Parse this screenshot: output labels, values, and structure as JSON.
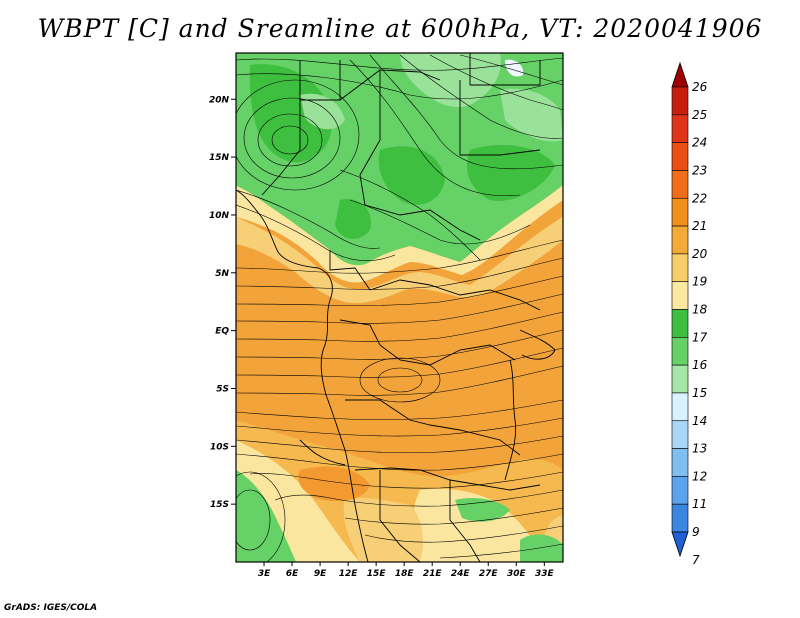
{
  "title": "WBPT [C] and Sreamline at 600hPa, VT: 2020041906",
  "footer": "GrADS: IGES/COLA",
  "map": {
    "lon_range": [
      0,
      35
    ],
    "lat_range": [
      -20,
      24
    ],
    "lon_ticks": [
      "3E",
      "6E",
      "9E",
      "12E",
      "15E",
      "18E",
      "21E",
      "24E",
      "27E",
      "30E",
      "33E"
    ],
    "lat_ticks": [
      "20N",
      "15N",
      "10N",
      "5N",
      "EQ",
      "5S",
      "10S",
      "15S"
    ],
    "colors": {
      "green_dark": "#3fbf3f",
      "green_mid": "#66d166",
      "green_light": "#9ae29a",
      "yellow_light": "#fbe6a0",
      "tan": "#f7cf77",
      "orange_light": "#f5b94f",
      "orange": "#f2a33a",
      "white_patch": "#f0f7ff"
    }
  },
  "colorbar": {
    "labels": [
      "26",
      "25",
      "24",
      "23",
      "22",
      "21",
      "20",
      "19",
      "18",
      "17",
      "16",
      "15",
      "14",
      "13",
      "12",
      "11",
      "9",
      "7"
    ],
    "colors": [
      "#a00000",
      "#c81e0e",
      "#e0341a",
      "#eb4f14",
      "#f06e1a",
      "#f2901e",
      "#f2ab36",
      "#f7cf6a",
      "#fbe8a0",
      "#3fbf3f",
      "#66d166",
      "#a6e6a6",
      "#d8f2ff",
      "#a9d6f5",
      "#7fbef0",
      "#5ba3ec",
      "#3a86e0",
      "#1e5fd4"
    ]
  }
}
